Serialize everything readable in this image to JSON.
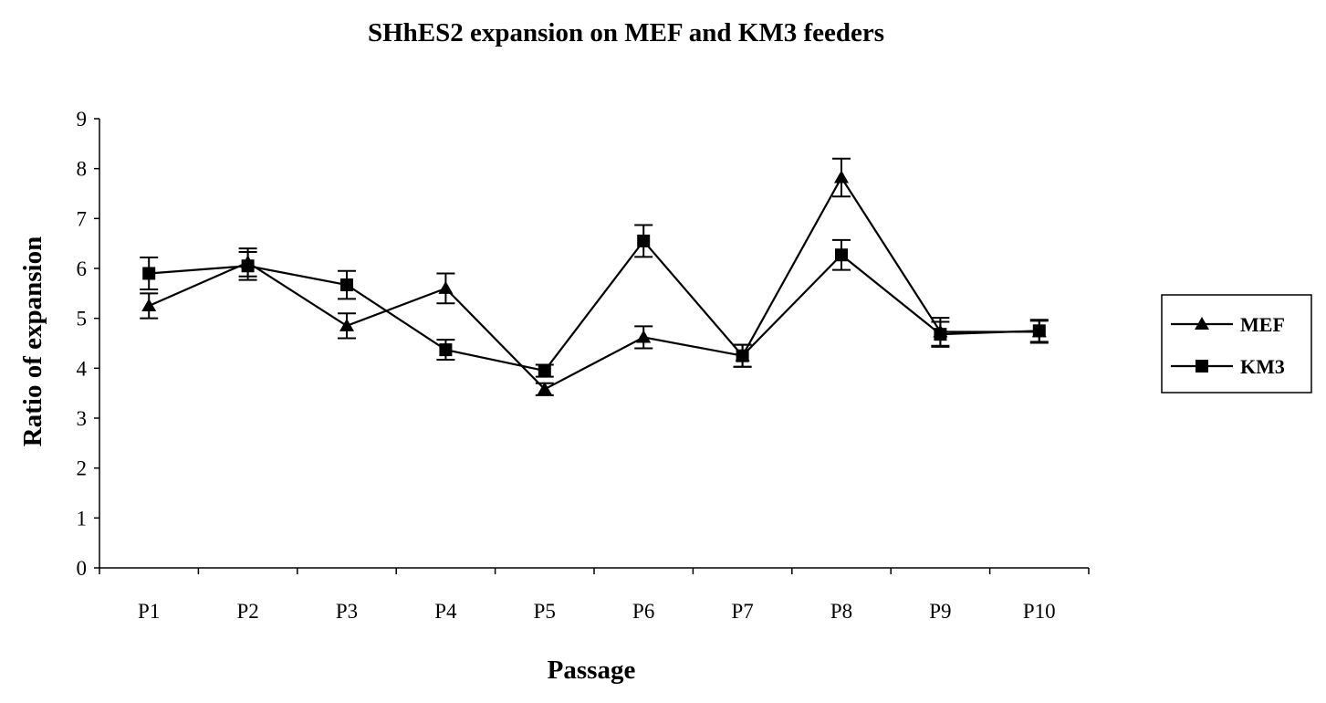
{
  "chart_data": {
    "type": "line",
    "title": "SHhES2 expansion on MEF and KM3 feeders",
    "xlabel": "Passage",
    "ylabel": "Ratio of expansion",
    "categories": [
      "P1",
      "P2",
      "P3",
      "P4",
      "P5",
      "P6",
      "P7",
      "P8",
      "P9",
      "P10"
    ],
    "ylim": [
      0,
      9
    ],
    "yticks": [
      "0",
      "1",
      "2",
      "3",
      "4",
      "5",
      "6",
      "7",
      "8",
      "9"
    ],
    "grid": false,
    "legend_position": "right",
    "series": [
      {
        "name": "MEF",
        "marker": "triangle",
        "values": [
          5.25,
          6.12,
          4.85,
          5.6,
          3.58,
          4.62,
          4.25,
          7.82,
          4.73,
          4.73
        ],
        "errors": [
          0.25,
          0.28,
          0.25,
          0.3,
          0.12,
          0.22,
          0.22,
          0.38,
          0.28,
          0.22
        ]
      },
      {
        "name": "KM3",
        "marker": "square",
        "values": [
          5.9,
          6.05,
          5.67,
          4.37,
          3.95,
          6.55,
          4.25,
          6.27,
          4.68,
          4.75
        ],
        "errors": [
          0.32,
          0.28,
          0.28,
          0.2,
          0.12,
          0.32,
          0.22,
          0.3,
          0.25,
          0.22
        ]
      }
    ],
    "colors": {
      "line": "#000000",
      "background": "#ffffff"
    }
  }
}
